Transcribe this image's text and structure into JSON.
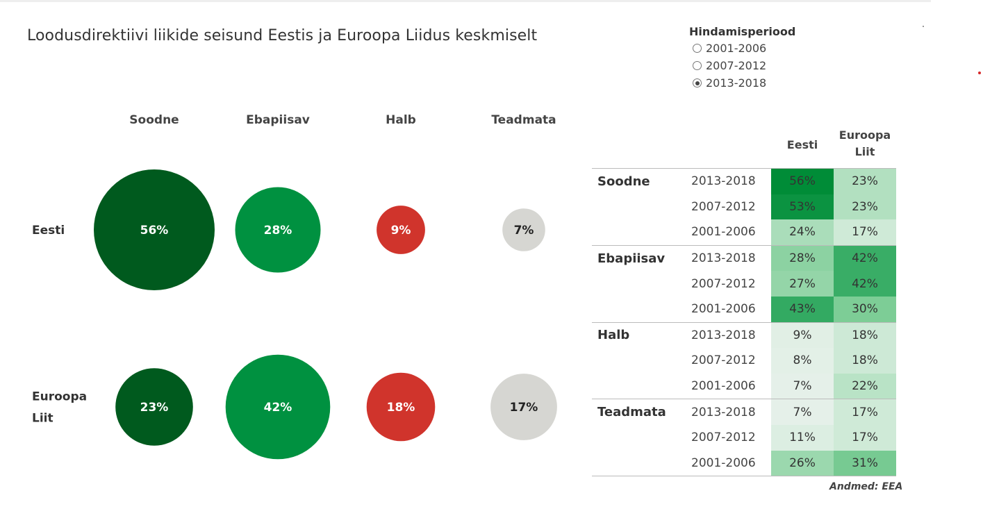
{
  "title": "Loodusdirektiivi liikide seisund Eestis ja Euroopa Liidus keskmiselt",
  "slicer": {
    "title": "Hindamisperiood",
    "options": [
      {
        "label": "2001-2006",
        "selected": false
      },
      {
        "label": "2007-2012",
        "selected": false
      },
      {
        "label": "2013-2018",
        "selected": true
      }
    ]
  },
  "source": "Andmed: EEA",
  "chart_data": [
    {
      "type": "scatter",
      "subtype": "bubble-matrix",
      "period": "2013-2018",
      "columns": [
        "Soodne",
        "Ebapiisav",
        "Halb",
        "Teadmata"
      ],
      "rows": [
        {
          "name": "Eesti",
          "label_lines": [
            "Eesti"
          ],
          "values": [
            56,
            28,
            9,
            7
          ],
          "labels": [
            "56%",
            "28%",
            "9%",
            "7%"
          ]
        },
        {
          "name": "Euroopa Liit",
          "label_lines": [
            "Euroopa",
            "Liit"
          ],
          "values": [
            23,
            42,
            18,
            17
          ],
          "labels": [
            "23%",
            "42%",
            "18%",
            "17%"
          ]
        }
      ],
      "colors": {
        "Soodne": "#005a1e",
        "Ebapiisav": "#009140",
        "Halb": "#d0342c",
        "Teadmata": "#d6d6d2"
      },
      "label_colors": {
        "Soodne": "#ffffff",
        "Ebapiisav": "#ffffff",
        "Halb": "#ffffff",
        "Teadmata": "#222222"
      }
    },
    {
      "type": "table",
      "subtype": "heatmap-matrix",
      "columns": [
        "Eesti",
        "Euroopa Liit"
      ],
      "column_label_lines": [
        [
          "Eesti"
        ],
        [
          "Euroopa",
          "Liit"
        ]
      ],
      "groups": [
        {
          "name": "Soodne",
          "rows": [
            {
              "period": "2013-2018",
              "values": [
                56,
                23
              ],
              "labels": [
                "56%",
                "23%"
              ]
            },
            {
              "period": "2007-2012",
              "values": [
                53,
                23
              ],
              "labels": [
                "53%",
                "23%"
              ]
            },
            {
              "period": "2001-2006",
              "values": [
                24,
                17
              ],
              "labels": [
                "24%",
                "17%"
              ]
            }
          ]
        },
        {
          "name": "Ebapiisav",
          "rows": [
            {
              "period": "2013-2018",
              "values": [
                28,
                42
              ],
              "labels": [
                "28%",
                "42%"
              ]
            },
            {
              "period": "2007-2012",
              "values": [
                27,
                42
              ],
              "labels": [
                "27%",
                "42%"
              ]
            },
            {
              "period": "2001-2006",
              "values": [
                43,
                30
              ],
              "labels": [
                "43%",
                "30%"
              ]
            }
          ]
        },
        {
          "name": "Halb",
          "rows": [
            {
              "period": "2013-2018",
              "values": [
                9,
                18
              ],
              "labels": [
                "9%",
                "18%"
              ]
            },
            {
              "period": "2007-2012",
              "values": [
                8,
                18
              ],
              "labels": [
                "8%",
                "18%"
              ]
            },
            {
              "period": "2001-2006",
              "values": [
                7,
                22
              ],
              "labels": [
                "7%",
                "22%"
              ]
            }
          ]
        },
        {
          "name": "Teadmata",
          "rows": [
            {
              "period": "2013-2018",
              "values": [
                7,
                17
              ],
              "labels": [
                "7%",
                "17%"
              ]
            },
            {
              "period": "2007-2012",
              "values": [
                11,
                17
              ],
              "labels": [
                "11%",
                "17%"
              ]
            },
            {
              "period": "2001-2006",
              "values": [
                26,
                31
              ],
              "labels": [
                "26%",
                "31%"
              ]
            }
          ]
        }
      ]
    }
  ]
}
